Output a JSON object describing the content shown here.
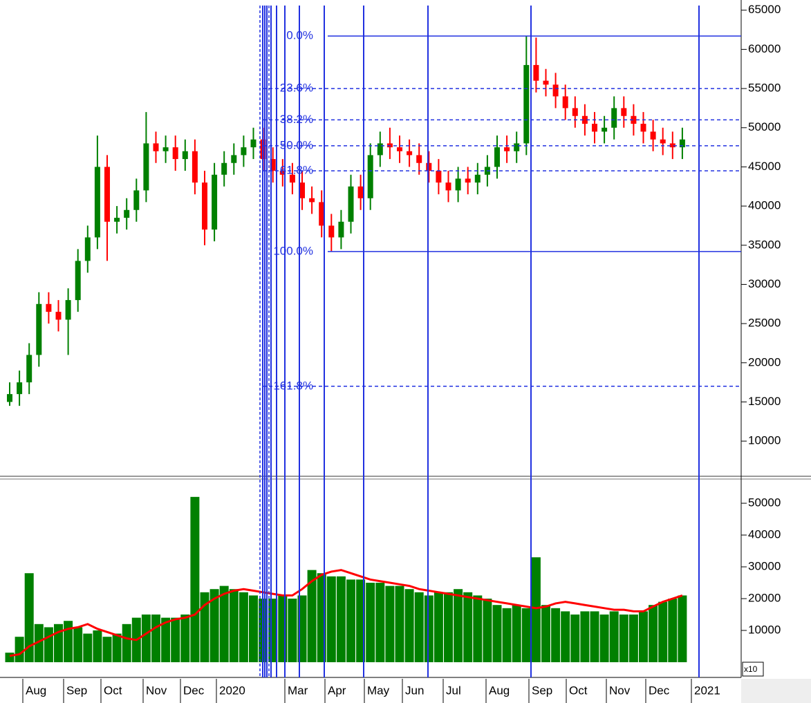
{
  "chart_data": [
    {
      "type": "candlestick",
      "open": [
        15000,
        16000,
        17500,
        21000,
        27500,
        26500,
        25500,
        28000,
        33000,
        36000,
        45000,
        38000,
        38500,
        39500,
        42000,
        48000,
        47000,
        47500,
        46000,
        47000,
        43000,
        37000,
        44000,
        45500,
        46500,
        47500,
        48500,
        46000,
        44500,
        44000,
        43000,
        41000,
        40500,
        37500,
        36000,
        38000,
        42500,
        41000,
        46500,
        48000,
        47500,
        47000,
        46500,
        45500,
        44500,
        43000,
        42000,
        43500,
        43000,
        44000,
        45000,
        47500,
        47000,
        48000,
        58000,
        56000,
        55500,
        54000,
        52500,
        51500,
        50500,
        49500,
        50000,
        52500,
        51500,
        50500,
        49500,
        48500,
        48000,
        47500
      ],
      "high": [
        17500,
        19000,
        22500,
        29000,
        29000,
        28000,
        29500,
        34500,
        37500,
        49000,
        46500,
        40000,
        41000,
        43500,
        52000,
        49500,
        49000,
        49000,
        48500,
        48500,
        44500,
        45500,
        47000,
        48000,
        49000,
        50000,
        50000,
        47500,
        46000,
        45500,
        44500,
        42500,
        42000,
        39000,
        39500,
        44000,
        44000,
        48000,
        49500,
        50000,
        49000,
        48500,
        48000,
        47000,
        46000,
        44500,
        45000,
        45000,
        45500,
        46500,
        49000,
        49000,
        49500,
        61700,
        61500,
        57500,
        57000,
        55500,
        54000,
        53000,
        52000,
        51500,
        54000,
        54000,
        53000,
        52000,
        51000,
        50000,
        49500,
        50000
      ],
      "low": [
        14500,
        14500,
        16000,
        19500,
        25000,
        24000,
        21000,
        26500,
        31500,
        34500,
        33000,
        36500,
        37000,
        38000,
        40500,
        45500,
        45500,
        44500,
        44500,
        41500,
        35000,
        35500,
        42500,
        44000,
        45000,
        46000,
        44500,
        43000,
        42500,
        41500,
        39500,
        39000,
        36000,
        34200,
        34500,
        36500,
        39500,
        39500,
        45000,
        46000,
        45500,
        45000,
        44000,
        43000,
        41500,
        40500,
        40500,
        41500,
        41500,
        42500,
        43500,
        45500,
        45500,
        46500,
        54500,
        54000,
        52500,
        51000,
        50000,
        49000,
        48000,
        48000,
        48500,
        50000,
        49000,
        48000,
        47000,
        46500,
        46000,
        46000
      ],
      "close": [
        16000,
        17500,
        21000,
        27500,
        26500,
        25500,
        28000,
        33000,
        36000,
        45000,
        38000,
        38500,
        39500,
        42000,
        48000,
        47000,
        47500,
        46000,
        47000,
        43000,
        37000,
        44000,
        45500,
        46500,
        47500,
        48500,
        46000,
        44500,
        44000,
        43000,
        41000,
        40500,
        37500,
        36000,
        38000,
        42500,
        41000,
        46500,
        48000,
        47500,
        47000,
        46500,
        45500,
        44500,
        43000,
        42000,
        43500,
        43000,
        44000,
        45000,
        47500,
        47000,
        48000,
        58000,
        56000,
        55500,
        54000,
        52500,
        51500,
        50500,
        49500,
        50000,
        52500,
        51500,
        50500,
        49500,
        48500,
        48000,
        47500,
        48500
      ],
      "up_color": "#008000",
      "down_color": "#ff0000",
      "ylim": [
        5600,
        66300
      ],
      "yticks": [
        10000,
        15000,
        20000,
        25000,
        30000,
        35000,
        40000,
        45000,
        50000,
        55000,
        60000,
        65000
      ],
      "fib_levels": [
        {
          "label": "0.0%",
          "value": 61700,
          "style": "solid"
        },
        {
          "label": "23.6%",
          "value": 55000,
          "style": "dashed"
        },
        {
          "label": "38.2%",
          "value": 51000,
          "style": "dashed"
        },
        {
          "label": "50.0%",
          "value": 47700,
          "style": "dashed"
        },
        {
          "label": "61.8%",
          "value": 44500,
          "style": "dashed"
        },
        {
          "label": "100.0%",
          "value": 34200,
          "style": "solid"
        },
        {
          "label": "161.8%",
          "value": 17000,
          "style": "dashed"
        }
      ],
      "fib_color": "#2030e0"
    },
    {
      "type": "bar",
      "values": [
        3000,
        8000,
        28000,
        12000,
        11000,
        12000,
        13000,
        11000,
        9000,
        10000,
        8000,
        9000,
        12000,
        14000,
        15000,
        15000,
        14000,
        14000,
        15000,
        52000,
        22000,
        23000,
        24000,
        23000,
        22000,
        21000,
        20000,
        20000,
        21000,
        20000,
        21000,
        29000,
        28000,
        27000,
        27000,
        26000,
        26000,
        25000,
        25000,
        24000,
        24000,
        23000,
        22000,
        21000,
        22000,
        22000,
        23000,
        22000,
        21000,
        20000,
        18000,
        17000,
        18000,
        17000,
        33000,
        18000,
        17000,
        16000,
        15000,
        16000,
        16000,
        15000,
        16000,
        15000,
        15000,
        16000,
        18000,
        19000,
        20000,
        21000
      ],
      "color": "#008000",
      "ma": [
        2000,
        2500,
        5000,
        6500,
        8000,
        9500,
        10500,
        11000,
        12000,
        10500,
        9500,
        8500,
        7500,
        7000,
        9000,
        11000,
        12500,
        13500,
        14000,
        15000,
        18000,
        20000,
        21500,
        22500,
        23000,
        22500,
        22000,
        21500,
        21000,
        21000,
        23000,
        25500,
        27500,
        28500,
        29000,
        28000,
        27000,
        26000,
        25500,
        25000,
        24500,
        24000,
        23000,
        22500,
        22000,
        21500,
        21000,
        20500,
        20000,
        19500,
        19000,
        18500,
        18000,
        17500,
        17000,
        17500,
        18500,
        19000,
        18500,
        18000,
        17500,
        17000,
        16500,
        16500,
        16000,
        16000,
        17500,
        19000,
        20000,
        21000
      ],
      "ma_color": "#ff0000",
      "ylim": [
        0,
        57400
      ],
      "yticks": [
        10000,
        20000,
        30000,
        40000,
        50000
      ],
      "unit_label": "x10",
      "x_labels": [
        "Aug",
        "Sep",
        "Oct",
        "Nov",
        "Dec",
        "2020",
        "Mar",
        "Apr",
        "May",
        "Jun",
        "Jul",
        "Aug",
        "Sep",
        "Oct",
        "Nov",
        "Dec",
        "2021"
      ]
    }
  ]
}
